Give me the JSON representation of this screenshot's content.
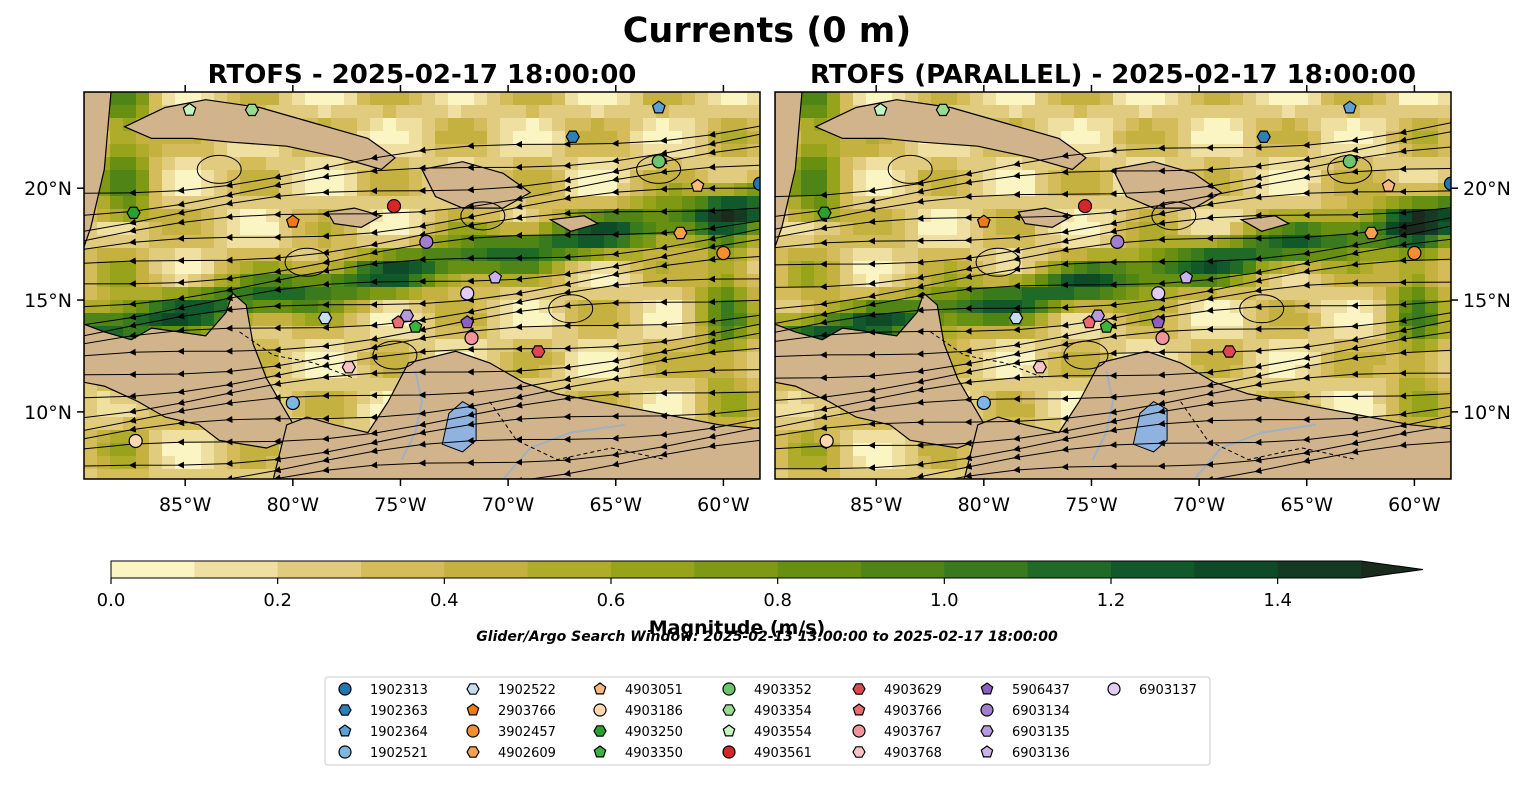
{
  "figure": {
    "suptitle": "Currents (0 m)",
    "search_window": "Glider/Argo Search Window: 2025-02-13 13:00:00 to 2025-02-17 18:00:00"
  },
  "chart_data": [
    {
      "type": "heatmap",
      "title": "RTOFS - 2025-02-17 18:00:00",
      "x_ticks": [
        "85°W",
        "80°W",
        "75°W",
        "70°W",
        "65°W",
        "60°W"
      ],
      "x_tick_values": [
        -85,
        -80,
        -75,
        -70,
        -65,
        -60
      ],
      "y_ticks": [
        "10°N",
        "15°N",
        "20°N"
      ],
      "y_tick_values": [
        10,
        15,
        20
      ],
      "xlim": [
        -89.7,
        -58.3
      ],
      "ylim": [
        7.0,
        24.3
      ],
      "y_tick_side": "left"
    },
    {
      "type": "heatmap",
      "title": "RTOFS (PARALLEL) - 2025-02-17 18:00:00",
      "x_ticks": [
        "85°W",
        "80°W",
        "75°W",
        "70°W",
        "65°W",
        "60°W"
      ],
      "x_tick_values": [
        -85,
        -80,
        -75,
        -70,
        -65,
        -60
      ],
      "y_ticks": [
        "10°N",
        "15°N",
        "20°N"
      ],
      "y_tick_values": [
        10,
        15,
        20
      ],
      "xlim": [
        -89.7,
        -58.3
      ],
      "ylim": [
        7.0,
        24.3
      ],
      "y_tick_side": "right"
    }
  ],
  "colorbar": {
    "label": "Magnitude (m/s)",
    "ticks": [
      "0.0",
      "0.2",
      "0.4",
      "0.6",
      "0.8",
      "1.0",
      "1.2",
      "1.4"
    ],
    "tick_values": [
      0.0,
      0.2,
      0.4,
      0.6,
      0.8,
      1.0,
      1.2,
      1.4
    ],
    "range": [
      0.0,
      1.5
    ],
    "extend": "max",
    "colors": [
      "#fbf5c4",
      "#efe0a2",
      "#e1cb7f",
      "#d4bc5a",
      "#c4b13f",
      "#aeac2a",
      "#97a31b",
      "#7f9914",
      "#679012",
      "#4f8516",
      "#387a1d",
      "#1f6a26",
      "#11592b",
      "#0f4a28",
      "#153a23",
      "#1a2b1d"
    ]
  },
  "map_colors": {
    "land": "#d2b48c",
    "lake": "#8fb2de",
    "river": "#9db0c4"
  },
  "legend": [
    {
      "id": "1902313",
      "marker": "circle",
      "color": "#1f77b4"
    },
    {
      "id": "1902363",
      "marker": "hexagon",
      "color": "#2d7fba"
    },
    {
      "id": "1902364",
      "marker": "pentagon",
      "color": "#5da0d6"
    },
    {
      "id": "1902521",
      "marker": "circle",
      "color": "#7fb7e3"
    },
    {
      "id": "1902522",
      "marker": "hexagon",
      "color": "#c6def0"
    },
    {
      "id": "2903766",
      "marker": "pentagon",
      "color": "#f07a16"
    },
    {
      "id": "3902457",
      "marker": "circle",
      "color": "#f58e2e"
    },
    {
      "id": "4902609",
      "marker": "hexagon",
      "color": "#f7a04e"
    },
    {
      "id": "4903051",
      "marker": "pentagon",
      "color": "#fbb97e"
    },
    {
      "id": "4903186",
      "marker": "circle",
      "color": "#fdd9b2"
    },
    {
      "id": "4903250",
      "marker": "hexagon",
      "color": "#2ca02c"
    },
    {
      "id": "4903350",
      "marker": "pentagon",
      "color": "#3cb43c"
    },
    {
      "id": "4903352",
      "marker": "circle",
      "color": "#6cc46c"
    },
    {
      "id": "4903354",
      "marker": "hexagon",
      "color": "#98db8f"
    },
    {
      "id": "4903554",
      "marker": "pentagon",
      "color": "#c5f5c0"
    },
    {
      "id": "4903561",
      "marker": "circle",
      "color": "#d62728"
    },
    {
      "id": "4903629",
      "marker": "hexagon",
      "color": "#de4650"
    },
    {
      "id": "4903766",
      "marker": "pentagon",
      "color": "#ec6a72"
    },
    {
      "id": "4903767",
      "marker": "circle",
      "color": "#f2959b"
    },
    {
      "id": "4903768",
      "marker": "hexagon",
      "color": "#f8c3c7"
    },
    {
      "id": "5906437",
      "marker": "pentagon",
      "color": "#8d5fc0"
    },
    {
      "id": "6903134",
      "marker": "circle",
      "color": "#a27ed0"
    },
    {
      "id": "6903135",
      "marker": "hexagon",
      "color": "#b59ae0"
    },
    {
      "id": "6903136",
      "marker": "pentagon",
      "color": "#cbb4ee"
    },
    {
      "id": "6903137",
      "marker": "circle",
      "color": "#e1ccf6"
    }
  ],
  "markers_left": [
    {
      "id": "1902313",
      "lon": -58.3,
      "lat": 20.2
    },
    {
      "id": "1902363",
      "lon": -67.0,
      "lat": 22.3
    },
    {
      "id": "1902364",
      "lon": -63.0,
      "lat": 23.6
    },
    {
      "id": "1902521",
      "lon": -80.0,
      "lat": 10.4
    },
    {
      "id": "1902522",
      "lon": -78.5,
      "lat": 14.2
    },
    {
      "id": "2903766",
      "lon": -80.0,
      "lat": 18.5
    },
    {
      "id": "3902457",
      "lon": -60.0,
      "lat": 17.1
    },
    {
      "id": "4902609",
      "lon": -62.0,
      "lat": 18.0
    },
    {
      "id": "4903051",
      "lon": -61.2,
      "lat": 20.1
    },
    {
      "id": "4903186",
      "lon": -87.3,
      "lat": 8.7
    },
    {
      "id": "4903250",
      "lon": -87.4,
      "lat": 18.9
    },
    {
      "id": "4903350",
      "lon": -74.3,
      "lat": 13.8
    },
    {
      "id": "4903352",
      "lon": -63.0,
      "lat": 21.2
    },
    {
      "id": "4903354",
      "lon": -81.9,
      "lat": 23.5
    },
    {
      "id": "4903554",
      "lon": -84.8,
      "lat": 23.5
    },
    {
      "id": "4903561",
      "lon": -75.3,
      "lat": 19.2
    },
    {
      "id": "4903629",
      "lon": -68.6,
      "lat": 12.7
    },
    {
      "id": "4903766",
      "lon": -75.1,
      "lat": 14.0
    },
    {
      "id": "4903767",
      "lon": -71.7,
      "lat": 13.3
    },
    {
      "id": "4903768",
      "lon": -77.4,
      "lat": 12.0
    },
    {
      "id": "5906437",
      "lon": -71.9,
      "lat": 14.0
    },
    {
      "id": "6903134",
      "lon": -73.8,
      "lat": 17.6
    },
    {
      "id": "6903135",
      "lon": -74.7,
      "lat": 14.3
    },
    {
      "id": "6903136",
      "lon": -70.6,
      "lat": 16.0
    },
    {
      "id": "6903137",
      "lon": -71.9,
      "lat": 15.3
    }
  ],
  "markers_right": [
    {
      "id": "1902313",
      "lon": -58.3,
      "lat": 20.2
    },
    {
      "id": "1902363",
      "lon": -67.0,
      "lat": 22.3
    },
    {
      "id": "1902364",
      "lon": -63.0,
      "lat": 23.6
    },
    {
      "id": "1902521",
      "lon": -80.0,
      "lat": 10.4
    },
    {
      "id": "1902522",
      "lon": -78.5,
      "lat": 14.2
    },
    {
      "id": "2903766",
      "lon": -80.0,
      "lat": 18.5
    },
    {
      "id": "3902457",
      "lon": -60.0,
      "lat": 17.1
    },
    {
      "id": "4902609",
      "lon": -62.0,
      "lat": 18.0
    },
    {
      "id": "4903051",
      "lon": -61.2,
      "lat": 20.1
    },
    {
      "id": "4903186",
      "lon": -87.3,
      "lat": 8.7
    },
    {
      "id": "4903250",
      "lon": -87.4,
      "lat": 18.9
    },
    {
      "id": "4903350",
      "lon": -74.3,
      "lat": 13.8
    },
    {
      "id": "4903352",
      "lon": -63.0,
      "lat": 21.2
    },
    {
      "id": "4903354",
      "lon": -81.9,
      "lat": 23.5
    },
    {
      "id": "4903554",
      "lon": -84.8,
      "lat": 23.5
    },
    {
      "id": "4903561",
      "lon": -75.3,
      "lat": 19.2
    },
    {
      "id": "4903629",
      "lon": -68.6,
      "lat": 12.7
    },
    {
      "id": "4903766",
      "lon": -75.1,
      "lat": 14.0
    },
    {
      "id": "4903767",
      "lon": -71.7,
      "lat": 13.3
    },
    {
      "id": "4903768",
      "lon": -77.4,
      "lat": 12.0
    },
    {
      "id": "5906437",
      "lon": -71.9,
      "lat": 14.0
    },
    {
      "id": "6903134",
      "lon": -73.8,
      "lat": 17.6
    },
    {
      "id": "6903135",
      "lon": -74.7,
      "lat": 14.3
    },
    {
      "id": "6903136",
      "lon": -70.6,
      "lat": 16.0
    },
    {
      "id": "6903137",
      "lon": -71.9,
      "lat": 15.3
    }
  ]
}
